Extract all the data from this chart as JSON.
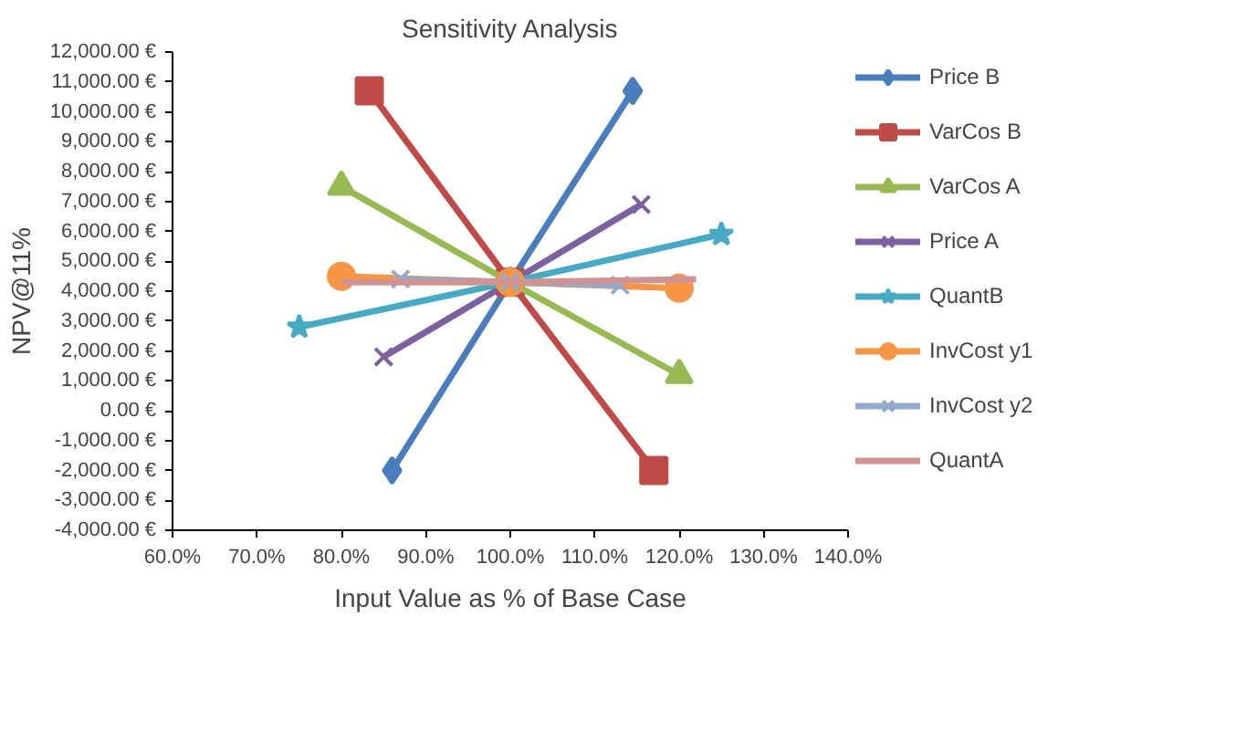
{
  "chart_data": {
    "type": "line",
    "title": "Sensitivity Analysis",
    "xlabel": "Input Value as % of Base Case",
    "ylabel": "NPV@11%",
    "xlim": [
      60,
      140
    ],
    "xticks": [
      {
        "value": 60,
        "label": "60.0%"
      },
      {
        "value": 70,
        "label": "70.0%"
      },
      {
        "value": 80,
        "label": "80.0%"
      },
      {
        "value": 90,
        "label": "90.0%"
      },
      {
        "value": 100,
        "label": "100.0%"
      },
      {
        "value": 110,
        "label": "110.0%"
      },
      {
        "value": 120,
        "label": "120.0%"
      },
      {
        "value": 130,
        "label": "130.0%"
      },
      {
        "value": 140,
        "label": "140.0%"
      }
    ],
    "ylim": [
      -4000,
      12000
    ],
    "yticks": [
      {
        "value": -4000,
        "label": "-4,000.00 €"
      },
      {
        "value": -3000,
        "label": "-3,000.00 €"
      },
      {
        "value": -2000,
        "label": "-2,000.00 €"
      },
      {
        "value": -1000,
        "label": "-1,000.00 €"
      },
      {
        "value": 0,
        "label": "0.00 €"
      },
      {
        "value": 1000,
        "label": "1,000.00 €"
      },
      {
        "value": 2000,
        "label": "2,000.00 €"
      },
      {
        "value": 3000,
        "label": "3,000.00 €"
      },
      {
        "value": 4000,
        "label": "4,000.00 €"
      },
      {
        "value": 5000,
        "label": "5,000.00 €"
      },
      {
        "value": 6000,
        "label": "6,000.00 €"
      },
      {
        "value": 7000,
        "label": "7,000.00 €"
      },
      {
        "value": 8000,
        "label": "8,000.00 €"
      },
      {
        "value": 9000,
        "label": "9,000.00 €"
      },
      {
        "value": 10000,
        "label": "10,000.00 €"
      },
      {
        "value": 11000,
        "label": "11,000.00 €"
      },
      {
        "value": 12000,
        "label": "12,000.00 €"
      }
    ],
    "grid": false,
    "legend": "right",
    "series": [
      {
        "name": "Price B",
        "color": "#4a7ebb",
        "marker": "diamond",
        "x": [
          86,
          100,
          114.5
        ],
        "values": [
          -2000,
          4300,
          10700
        ]
      },
      {
        "name": "VarCos B",
        "color": "#be4b48",
        "marker": "square",
        "x": [
          83.3,
          100,
          117
        ],
        "values": [
          10700,
          4300,
          -2000
        ]
      },
      {
        "name": "VarCos A",
        "color": "#98b954",
        "marker": "triangle",
        "x": [
          80,
          100,
          120
        ],
        "values": [
          7500,
          4300,
          1200
        ]
      },
      {
        "name": "Price A",
        "color": "#7d60a0",
        "marker": "cross",
        "x": [
          85,
          100,
          115.5
        ],
        "values": [
          1800,
          4300,
          6900
        ]
      },
      {
        "name": "QuantB",
        "color": "#46aac5",
        "marker": "star",
        "x": [
          75,
          100,
          125
        ],
        "values": [
          2800,
          4300,
          5900
        ]
      },
      {
        "name": "InvCost y1",
        "color": "#f79646",
        "marker": "circle",
        "x": [
          80,
          100,
          120
        ],
        "values": [
          4500,
          4300,
          4100
        ]
      },
      {
        "name": "InvCost y2",
        "color": "#93a9cf",
        "marker": "cross",
        "x": [
          87,
          100,
          113
        ],
        "values": [
          4400,
          4300,
          4200
        ]
      },
      {
        "name": "QuantA",
        "color": "#d19392",
        "marker": "none",
        "x": [
          80,
          100,
          122
        ],
        "values": [
          4300,
          4300,
          4400
        ]
      }
    ]
  }
}
